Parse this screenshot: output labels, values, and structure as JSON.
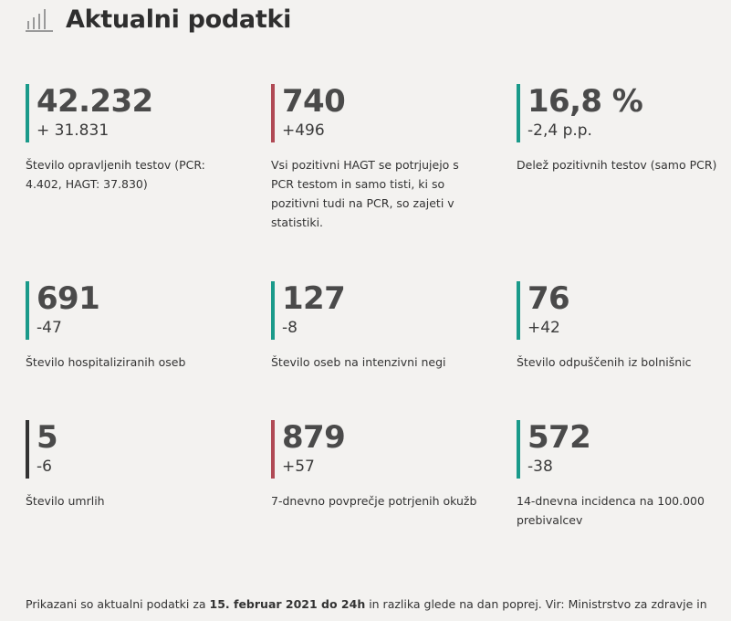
{
  "header": {
    "title": "Aktualni podatki",
    "icon": "bar-chart-icon"
  },
  "colors": {
    "teal": "#1a9a8a",
    "red": "#b04a55",
    "dark": "#333333",
    "background": "#f3f2f0"
  },
  "stats": [
    {
      "value": "42.232",
      "change": "+ 31.831",
      "description": "Število opravljenih testov (PCR: 4.402, HAGT: 37.830)",
      "accent": "#1a9a8a"
    },
    {
      "value": "740",
      "change": "+496",
      "description": "Vsi pozitivni HAGT se potrjujejo s PCR testom in samo tisti, ki so pozitivni tudi na PCR, so zajeti v statistiki.",
      "accent": "#b04a55"
    },
    {
      "value": "16,8 %",
      "change": "-2,4 p.p.",
      "description": "Delež pozitivnih testov (samo PCR)",
      "accent": "#1a9a8a"
    },
    {
      "value": "691",
      "change": "-47",
      "description": "Število hospitaliziranih oseb",
      "accent": "#1a9a8a"
    },
    {
      "value": "127",
      "change": "-8",
      "description": "Število oseb na intenzivni negi",
      "accent": "#1a9a8a"
    },
    {
      "value": "76",
      "change": "+42",
      "description": "Število odpuščenih iz bolnišnic",
      "accent": "#1a9a8a"
    },
    {
      "value": "5",
      "change": "-6",
      "description": "Število umrlih",
      "accent": "#333333"
    },
    {
      "value": "879",
      "change": "+57",
      "description": "7-dnevno povprečje potrjenih okužb",
      "accent": "#b04a55"
    },
    {
      "value": "572",
      "change": "-38",
      "description": "14-dnevna incidenca na 100.000 prebivalcev",
      "accent": "#1a9a8a"
    }
  ],
  "footer": {
    "prefix": "Prikazani so aktualni podatki za ",
    "date": "15. februar 2021 do 24h",
    "suffix": " in razlika glede na dan poprej. Vir: Ministrstvo za zdravje in"
  }
}
